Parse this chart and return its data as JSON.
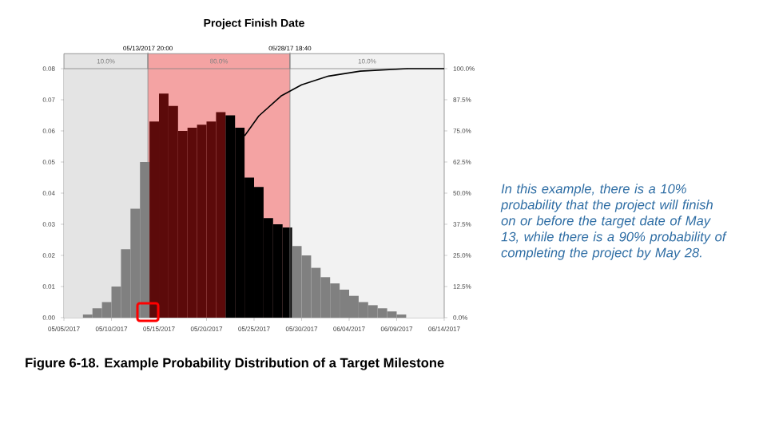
{
  "chart_data": {
    "type": "histogram",
    "title": "Project Finish Date",
    "bins": [
      "2017-05-07",
      "2017-05-08",
      "2017-05-09",
      "2017-05-10",
      "2017-05-11",
      "2017-05-12",
      "2017-05-13",
      "2017-05-14",
      "2017-05-15",
      "2017-05-16",
      "2017-05-17",
      "2017-05-18",
      "2017-05-19",
      "2017-05-20",
      "2017-05-21",
      "2017-05-22",
      "2017-05-23",
      "2017-05-24",
      "2017-05-25",
      "2017-05-26",
      "2017-05-27",
      "2017-05-28",
      "2017-05-29",
      "2017-05-30",
      "2017-05-31",
      "2017-06-01",
      "2017-06-02",
      "2017-06-03",
      "2017-06-04",
      "2017-06-05",
      "2017-06-06",
      "2017-06-07",
      "2017-06-08",
      "2017-06-09",
      "2017-06-10"
    ],
    "values": [
      0.001,
      0.003,
      0.005,
      0.01,
      0.022,
      0.035,
      0.05,
      0.063,
      0.072,
      0.068,
      0.06,
      0.061,
      0.062,
      0.063,
      0.066,
      0.065,
      0.061,
      0.045,
      0.042,
      0.032,
      0.03,
      0.029,
      0.023,
      0.02,
      0.016,
      0.013,
      0.011,
      0.009,
      0.007,
      0.005,
      0.004,
      0.003,
      0.002,
      0.001
    ],
    "colors": [
      "#808080",
      "#808080",
      "#808080",
      "#808080",
      "#808080",
      "#808080",
      "#808080",
      "#5c0a0a",
      "#5c0a0a",
      "#5c0a0a",
      "#5c0a0a",
      "#5c0a0a",
      "#5c0a0a",
      "#5c0a0a",
      "#5c0a0a",
      "#000000",
      "#000000",
      "#000000",
      "#000000",
      "#000000",
      "#000000",
      "#000000",
      "#808080",
      "#808080",
      "#808080",
      "#808080",
      "#808080",
      "#808080",
      "#808080",
      "#808080",
      "#808080",
      "#808080",
      "#808080",
      "#808080"
    ],
    "series": [
      {
        "type": "line",
        "axis": "y2",
        "color": "#000000",
        "x": [
          "2017-05-24T00:00",
          "2017-05-25T12:00",
          "2017-05-27T20:00",
          "2017-05-30",
          "2017-06-01T20:00",
          "2017-06-05T04:00",
          "2017-06-10T04:00",
          "2017-06-14"
        ],
        "values": [
          73,
          81,
          89,
          93.5,
          97,
          99,
          100,
          100
        ]
      }
    ],
    "xlim": [
      "2017-05-05",
      "2017-06-14"
    ],
    "xticks": [
      {
        "value": "2017-05-05",
        "label": "05/05/2017"
      },
      {
        "value": "2017-05-10",
        "label": "05/10/2017"
      },
      {
        "value": "2017-05-15",
        "label": "05/15/2017"
      },
      {
        "value": "2017-05-20",
        "label": "05/20/2017"
      },
      {
        "value": "2017-05-25",
        "label": "05/25/2017"
      },
      {
        "value": "2017-05-30",
        "label": "05/30/2017"
      },
      {
        "value": "2017-06-04",
        "label": "06/04/2017"
      },
      {
        "value": "2017-06-09",
        "label": "06/09/2017"
      },
      {
        "value": "2017-06-14",
        "label": "06/14/2017"
      }
    ],
    "ylim": [
      0,
      0.08
    ],
    "yticks": [
      {
        "value": 0,
        "label": "0.00"
      },
      {
        "value": 0.01,
        "label": "0.01"
      },
      {
        "value": 0.02,
        "label": "0.02"
      },
      {
        "value": 0.03,
        "label": "0.03"
      },
      {
        "value": 0.04,
        "label": "0.04"
      },
      {
        "value": 0.05,
        "label": "0.05"
      },
      {
        "value": 0.06,
        "label": "0.06"
      },
      {
        "value": 0.07,
        "label": "0.07"
      },
      {
        "value": 0.08,
        "label": "0.08"
      }
    ],
    "y2lim": [
      0,
      100
    ],
    "y2ticks": [
      {
        "value": 0,
        "label": "0.0%"
      },
      {
        "value": 12.5,
        "label": "12.5%"
      },
      {
        "value": 25,
        "label": "25.0%"
      },
      {
        "value": 37.5,
        "label": "37.5%"
      },
      {
        "value": 50,
        "label": "50.0%"
      },
      {
        "value": 62.5,
        "label": "62.5%"
      },
      {
        "value": 75,
        "label": "75.0%"
      },
      {
        "value": 87.5,
        "label": "87.5%"
      },
      {
        "value": 100,
        "label": "100.0%"
      }
    ],
    "bands": [
      {
        "axis": "x",
        "from": "2017-05-05",
        "to": "2017-05-13T20:00",
        "label": "10.0%",
        "color": "#e4e4e4"
      },
      {
        "axis": "x",
        "from": "2017-05-13T20:00",
        "to": "2017-05-28T18:40",
        "label": "80.0%",
        "color": "#f4a3a3"
      },
      {
        "axis": "x",
        "from": "2017-05-28T18:40",
        "to": "2017-06-14",
        "label": "10.0%",
        "color": "#f2f2f2"
      }
    ],
    "ref_lines": [
      {
        "axis": "x",
        "value": "2017-05-13T20:00",
        "label": "05/13/2017  20:00",
        "color": "#808080"
      },
      {
        "axis": "x",
        "value": "2017-05-28T18:40",
        "label": "05/28/17  18:40",
        "color": "#808080"
      }
    ],
    "annotations": [
      "In this example, there is a 10% probability that the project will finish on or before the target date of May 13, while there is a 90% probability of completing the project by May 28.",
      "Figure 6-18. Example Probability Distribution of a Target Milestone"
    ]
  }
}
